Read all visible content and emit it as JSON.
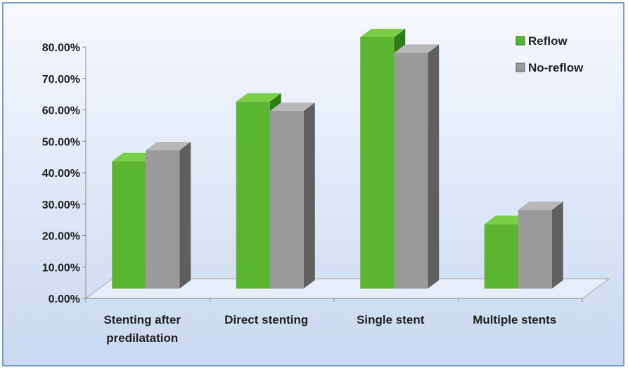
{
  "chart_data": {
    "type": "bar",
    "title": "",
    "xlabel": "",
    "ylabel": "",
    "categories": [
      [
        "Stenting after",
        "predilatation"
      ],
      [
        "Direct stenting"
      ],
      [
        "Single stent"
      ],
      [
        "Multiple stents"
      ]
    ],
    "series": [
      {
        "name": "Reflow",
        "values": [
          40.5,
          59.5,
          80.0,
          20.5
        ],
        "color": "#5bb531",
        "dark": "#2f7d1a",
        "top": "#79cf45"
      },
      {
        "name": "No-reflow",
        "values": [
          44.0,
          56.5,
          75.0,
          25.0
        ],
        "color": "#9a9a9a",
        "dark": "#5f5f5f",
        "top": "#b8b8b8"
      }
    ],
    "yticks": [
      "0.00%",
      "10.00%",
      "20.00%",
      "30.00%",
      "40.00%",
      "50.00%",
      "60.00%",
      "70.00%",
      "80.00%"
    ],
    "ylim": [
      0,
      80
    ],
    "legend_position": "top-right",
    "grid": false,
    "style": "3d-clustered-column"
  }
}
